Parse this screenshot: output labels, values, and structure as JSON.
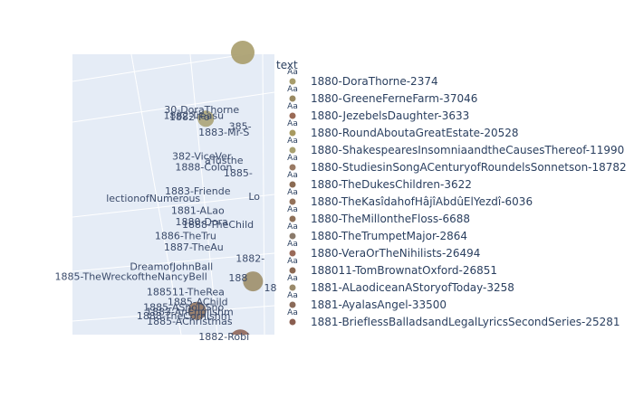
{
  "chart_data": {
    "type": "scatter",
    "legend": {
      "title": "text",
      "marker_text": "Aa",
      "placement": "right",
      "entries": [
        {
          "name": "1880-DoraThorne-2374",
          "color": "#a89d6c"
        },
        {
          "name": "1880-GreeneFerneFarm-37046",
          "color": "#9a8a62"
        },
        {
          "name": "1880-JezebelsDaughter-3633",
          "color": "#9a6a55"
        },
        {
          "name": "1880-RoundAboutaGreatEstate-20528",
          "color": "#a89a60"
        },
        {
          "name": "1880-ShakespearesInsomniaandtheCausesThereof-11990",
          "color": "#a8a070"
        },
        {
          "name": "1880-StudiesinSongACenturyofRoundelsSonnetson-18782",
          "color": "#9a7a64"
        },
        {
          "name": "1880-TheDukesChildren-3622",
          "color": "#8a6a52"
        },
        {
          "name": "1880-TheKasîdahofHâjîAbdûElYezdî-6036",
          "color": "#94725a"
        },
        {
          "name": "1880-TheMillontheFloss-6688",
          "color": "#8e7058"
        },
        {
          "name": "1880-TheTrumpetMajor-2864",
          "color": "#8a7a6a"
        },
        {
          "name": "1880-VeraOrTheNihilists-26494",
          "color": "#9a6a58"
        },
        {
          "name": "188011-TomBrownatOxford-26851",
          "color": "#8a6852"
        },
        {
          "name": "1881-ALaodiceanAStoryofToday-3258",
          "color": "#9a8a6a"
        },
        {
          "name": "1881-AyalasAngel-33500",
          "color": "#8a6a58"
        },
        {
          "name": "1881-BriefIessBalladsandLegalLyricsSecondSeries-25281",
          "color": "#8a5e50"
        }
      ]
    },
    "point_labels": [
      {
        "text": "30-DoraThorne",
        "x": 0.64,
        "y": 0.79,
        "color": "#a89d6c",
        "r": 0
      },
      {
        "text": "1882-Treasu",
        "x": 0.6,
        "y": 0.77,
        "color": "#a8a070",
        "r": 9
      },
      {
        "text": "1882-Fo",
        "x": 0.58,
        "y": 0.765,
        "color": "#9a8a62",
        "r": 0
      },
      {
        "text": "385-",
        "x": 0.83,
        "y": 0.73,
        "color": "#a89a60",
        "r": 0
      },
      {
        "text": "1883-Mr-S",
        "x": 0.75,
        "y": 0.71,
        "color": "#9a7a64",
        "r": 0
      },
      {
        "text": "382-ViceVer",
        "x": 0.64,
        "y": 0.625,
        "color": "#a8a070",
        "r": 0
      },
      {
        "text": "aTusthe",
        "x": 0.75,
        "y": 0.61,
        "color": "#9a8a62",
        "r": 0
      },
      {
        "text": "1888-Colon",
        "x": 0.65,
        "y": 0.585,
        "color": "#8a7a6a",
        "r": 0
      },
      {
        "text": "1885-",
        "x": 0.82,
        "y": 0.565,
        "color": "#9a6a55",
        "r": 0
      },
      {
        "text": "1883-Friende",
        "x": 0.62,
        "y": 0.5,
        "color": "#94725a",
        "r": 0
      },
      {
        "text": "lectionofNumerous",
        "x": 0.4,
        "y": 0.475,
        "color": "#8a6a52",
        "r": 0
      },
      {
        "text": "Lo",
        "x": 0.9,
        "y": 0.48,
        "color": "#9a8a6a",
        "r": 0
      },
      {
        "text": "1881-ALao",
        "x": 0.62,
        "y": 0.43,
        "color": "#9a8a6a",
        "r": 0
      },
      {
        "text": "1880-Dora",
        "x": 0.64,
        "y": 0.39,
        "color": "#8e7058",
        "r": 0
      },
      {
        "text": "1888-TheChild",
        "x": 0.72,
        "y": 0.38,
        "color": "#8a7a6a",
        "r": 0
      },
      {
        "text": "1886-TheTru",
        "x": 0.56,
        "y": 0.34,
        "color": "#8a6852",
        "r": 0
      },
      {
        "text": "1887-TheAu",
        "x": 0.6,
        "y": 0.3,
        "color": "#9a6a58",
        "r": 0
      },
      {
        "text": "1882-",
        "x": 0.88,
        "y": 0.26,
        "color": "#8a6a58",
        "r": 0
      },
      {
        "text": "DreamofJohnBall",
        "x": 0.49,
        "y": 0.23,
        "color": "#94725a",
        "r": 0
      },
      {
        "text": "1885-TheWreckoftheNancyBell",
        "x": 0.29,
        "y": 0.195,
        "color": "#8a5e50",
        "r": 0
      },
      {
        "text": "188",
        "x": 0.82,
        "y": 0.19,
        "color": "#9a8a62",
        "r": 11
      },
      {
        "text": "18",
        "x": 0.98,
        "y": 0.155,
        "color": "#a89a60",
        "r": 0
      },
      {
        "text": "188511-TheRea",
        "x": 0.56,
        "y": 0.14,
        "color": "#9a7a64",
        "r": 0
      },
      {
        "text": "1885-AChild",
        "x": 0.62,
        "y": 0.105,
        "color": "#a8a070",
        "r": 0
      },
      {
        "text": "1885-AShoDSho",
        "x": 0.55,
        "y": 0.085,
        "color": "#8e7058",
        "r": 10
      },
      {
        "text": "1883-AnEnglishm",
        "x": 0.58,
        "y": 0.07,
        "color": "#8a7a6a",
        "r": 0
      },
      {
        "text": "1888-TheCornishm",
        "x": 0.55,
        "y": 0.055,
        "color": "#9a6a55",
        "r": 0
      },
      {
        "text": "1885-AChristmas",
        "x": 0.58,
        "y": 0.035,
        "color": "#8a6a58",
        "r": 0
      },
      {
        "text": "1882-Robi",
        "x": 0.75,
        "y": -0.02,
        "color": "#8a5e50",
        "r": 12
      }
    ]
  }
}
